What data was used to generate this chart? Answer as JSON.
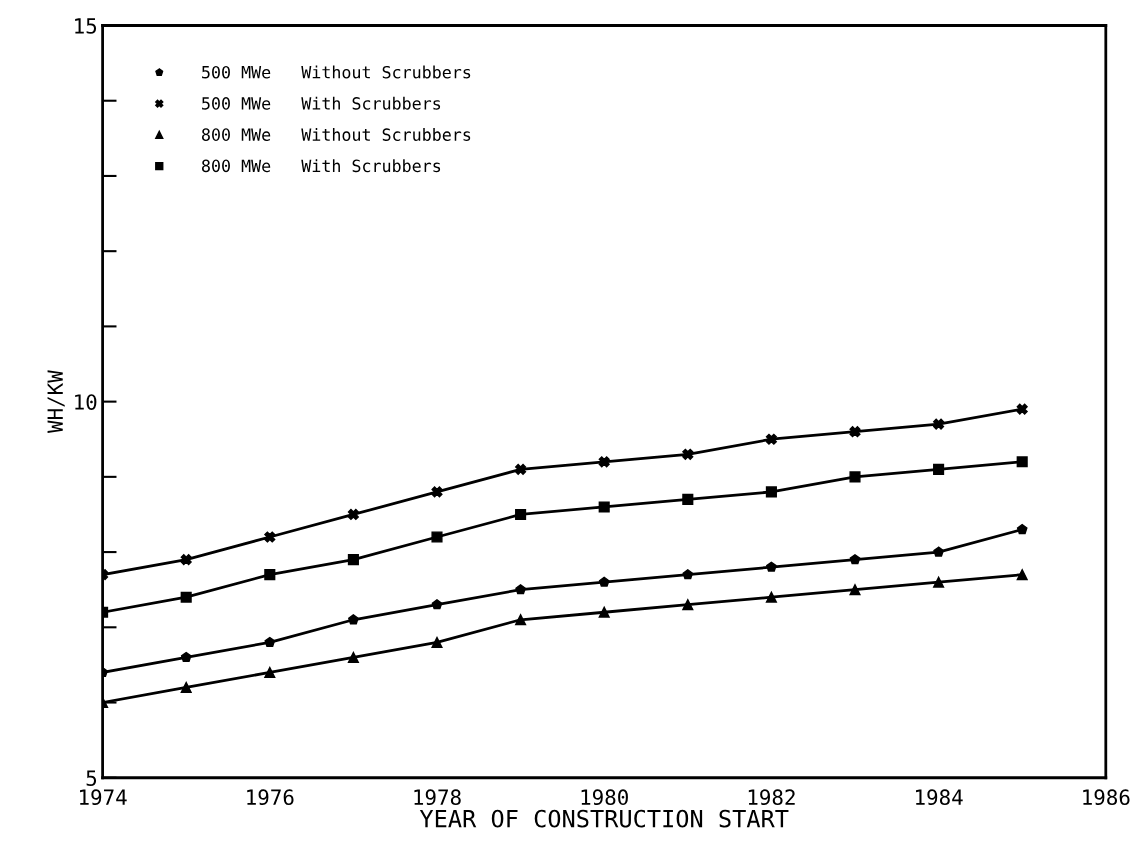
{
  "chart_data": {
    "type": "line",
    "xlabel": "YEAR OF CONSTRUCTION START",
    "ylabel": "WH/KW",
    "x": [
      1974,
      1975,
      1976,
      1977,
      1978,
      1979,
      1980,
      1981,
      1982,
      1983,
      1984,
      1985
    ],
    "series": [
      {
        "name": "500 MWe   Without Scrubbers",
        "color": "#000000",
        "marker": "star",
        "values": [
          6.4,
          6.6,
          6.8,
          7.1,
          7.3,
          7.5,
          7.6,
          7.7,
          7.8,
          7.9,
          8.0,
          8.3
        ]
      },
      {
        "name": "500 MWe   With Scrubbers",
        "color": "#000000",
        "marker": "cross",
        "values": [
          7.7,
          7.9,
          8.2,
          8.5,
          8.8,
          9.1,
          9.2,
          9.3,
          9.5,
          9.6,
          9.7,
          9.9
        ]
      },
      {
        "name": "800 MWe   Without Scrubbers",
        "color": "#000000",
        "marker": "triangle",
        "values": [
          6.0,
          6.2,
          6.4,
          6.6,
          6.8,
          7.1,
          7.2,
          7.3,
          7.4,
          7.5,
          7.6,
          7.7
        ]
      },
      {
        "name": "800 MWe   With Scrubbers",
        "color": "#000000",
        "marker": "square",
        "values": [
          7.2,
          7.4,
          7.7,
          7.9,
          8.2,
          8.5,
          8.6,
          8.7,
          8.8,
          9.0,
          9.1,
          9.2
        ]
      }
    ],
    "xlim": [
      1974,
      1986
    ],
    "xticks": [
      1974,
      1976,
      1978,
      1980,
      1982,
      1984,
      1986
    ],
    "ylim": [
      5,
      15
    ],
    "yticks": [
      5,
      {
        "value": 6,
        "label": null
      },
      {
        "value": 7,
        "label": null
      },
      {
        "value": 8,
        "label": null
      },
      {
        "value": 9,
        "label": null
      },
      10,
      {
        "value": 11,
        "label": null
      },
      {
        "value": 12,
        "label": null
      },
      {
        "value": 13,
        "label": null
      },
      {
        "value": 14,
        "label": null
      },
      15
    ],
    "grid": false,
    "legend": "top left",
    "line_style": "solid"
  }
}
